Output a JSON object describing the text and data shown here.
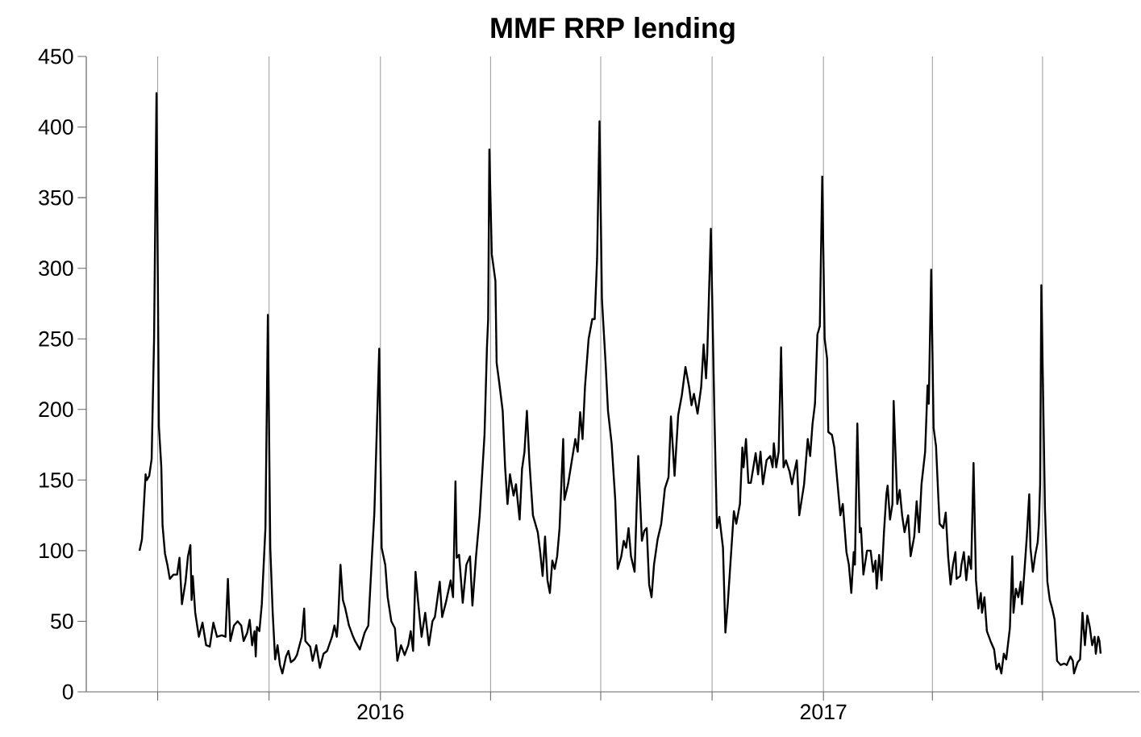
{
  "chart_data": {
    "type": "line",
    "title": "MMF RRP lending",
    "color": "#000000",
    "line_style": "solid",
    "grid": "x",
    "ylim": [
      0,
      450
    ],
    "yticks": [
      0,
      50,
      100,
      150,
      200,
      250,
      300,
      350,
      400,
      450
    ],
    "xlim": [
      "2015-05-03",
      "2017-09-19"
    ],
    "xticks": [
      {
        "value": "2015-07-01",
        "label": null
      },
      {
        "value": "2015-10-01",
        "label": null
      },
      {
        "value": "2016-01-01",
        "label": "2016"
      },
      {
        "value": "2016-04-01",
        "label": null
      },
      {
        "value": "2016-07-01",
        "label": null
      },
      {
        "value": "2016-10-01",
        "label": null
      },
      {
        "value": "2017-01-01",
        "label": "2017"
      },
      {
        "value": "2017-04-01",
        "label": null
      },
      {
        "value": "2017-07-01",
        "label": null
      }
    ],
    "x": [
      "2015-06-16",
      "2015-06-18",
      "2015-06-21",
      "2015-06-22",
      "2015-06-24",
      "2015-06-26",
      "2015-06-28",
      "2015-06-30",
      "2015-07-02",
      "2015-07-04",
      "2015-07-05",
      "2015-07-07",
      "2015-07-09",
      "2015-07-11",
      "2015-07-14",
      "2015-07-17",
      "2015-07-19",
      "2015-07-21",
      "2015-07-24",
      "2015-07-26",
      "2015-07-28",
      "2015-07-29",
      "2015-07-30",
      "2015-08-01",
      "2015-08-04",
      "2015-08-07",
      "2015-08-10",
      "2015-08-13",
      "2015-08-16",
      "2015-08-19",
      "2015-08-23",
      "2015-08-26",
      "2015-08-28",
      "2015-08-30",
      "2015-09-02",
      "2015-09-05",
      "2015-09-08",
      "2015-09-10",
      "2015-09-13",
      "2015-09-15",
      "2015-09-17",
      "2015-09-19",
      "2015-09-20",
      "2015-09-21",
      "2015-09-23",
      "2015-09-25",
      "2015-09-28",
      "2015-09-30",
      "2015-10-02",
      "2015-10-04",
      "2015-10-06",
      "2015-10-08",
      "2015-10-10",
      "2015-10-12",
      "2015-10-15",
      "2015-10-17",
      "2015-10-19",
      "2015-10-22",
      "2015-10-24",
      "2015-10-28",
      "2015-10-30",
      "2015-10-31",
      "2015-11-04",
      "2015-11-06",
      "2015-11-09",
      "2015-11-12",
      "2015-11-15",
      "2015-11-18",
      "2015-11-22",
      "2015-11-24",
      "2015-11-26",
      "2015-11-27",
      "2015-11-29",
      "2015-12-01",
      "2015-12-03",
      "2015-12-06",
      "2015-12-09",
      "2015-12-11",
      "2015-12-15",
      "2015-12-19",
      "2015-12-22",
      "2015-12-25",
      "2015-12-27",
      "2015-12-31",
      "2016-01-02",
      "2016-01-05",
      "2016-01-07",
      "2016-01-10",
      "2016-01-13",
      "2016-01-15",
      "2016-01-18",
      "2016-01-21",
      "2016-01-24",
      "2016-01-26",
      "2016-01-28",
      "2016-01-30",
      "2016-02-01",
      "2016-02-04",
      "2016-02-07",
      "2016-02-10",
      "2016-02-13",
      "2016-02-15",
      "2016-02-19",
      "2016-02-21",
      "2016-02-24",
      "2016-02-28",
      "2016-03-01",
      "2016-03-03",
      "2016-03-04",
      "2016-03-06",
      "2016-03-09",
      "2016-03-12",
      "2016-03-15",
      "2016-03-17",
      "2016-03-20",
      "2016-03-23",
      "2016-03-27",
      "2016-03-29",
      "2016-03-30",
      "2016-03-31",
      "2016-04-02",
      "2016-04-05",
      "2016-04-06",
      "2016-04-08",
      "2016-04-11",
      "2016-04-13",
      "2016-04-15",
      "2016-04-17",
      "2016-04-20",
      "2016-04-22",
      "2016-04-25",
      "2016-04-27",
      "2016-04-29",
      "2016-05-01",
      "2016-05-03",
      "2016-05-06",
      "2016-05-10",
      "2016-05-12",
      "2016-05-14",
      "2016-05-16",
      "2016-05-18",
      "2016-05-20",
      "2016-05-22",
      "2016-05-24",
      "2016-05-26",
      "2016-05-28",
      "2016-05-31",
      "2016-06-01",
      "2016-06-04",
      "2016-06-07",
      "2016-06-10",
      "2016-06-12",
      "2016-06-14",
      "2016-06-16",
      "2016-06-18",
      "2016-06-21",
      "2016-06-24",
      "2016-06-26",
      "2016-06-28",
      "2016-06-30",
      "2016-07-02",
      "2016-07-05",
      "2016-07-07",
      "2016-07-10",
      "2016-07-13",
      "2016-07-15",
      "2016-07-18",
      "2016-07-20",
      "2016-07-22",
      "2016-07-24",
      "2016-07-26",
      "2016-07-29",
      "2016-08-01",
      "2016-08-04",
      "2016-08-06",
      "2016-08-08",
      "2016-08-10",
      "2016-08-12",
      "2016-08-14",
      "2016-08-17",
      "2016-08-20",
      "2016-08-23",
      "2016-08-26",
      "2016-08-28",
      "2016-08-31",
      "2016-09-03",
      "2016-09-06",
      "2016-09-09",
      "2016-09-12",
      "2016-09-14",
      "2016-09-16",
      "2016-09-19",
      "2016-09-22",
      "2016-09-24",
      "2016-09-26",
      "2016-09-27",
      "2016-09-30",
      "2016-10-03",
      "2016-10-05",
      "2016-10-07",
      "2016-10-10",
      "2016-10-12",
      "2016-10-14",
      "2016-10-17",
      "2016-10-19",
      "2016-10-21",
      "2016-10-24",
      "2016-10-26",
      "2016-10-27",
      "2016-10-29",
      "2016-10-31",
      "2016-11-02",
      "2016-11-06",
      "2016-11-08",
      "2016-11-10",
      "2016-11-12",
      "2016-11-15",
      "2016-11-18",
      "2016-11-20",
      "2016-11-21",
      "2016-11-23",
      "2016-11-25",
      "2016-11-27",
      "2016-11-29",
      "2016-12-01",
      "2016-12-04",
      "2016-12-06",
      "2016-12-08",
      "2016-12-10",
      "2016-12-12",
      "2016-12-16",
      "2016-12-19",
      "2016-12-21",
      "2016-12-23",
      "2016-12-25",
      "2016-12-27",
      "2016-12-29",
      "2016-12-31",
      "2017-01-02",
      "2017-01-04",
      "2017-01-05",
      "2017-01-08",
      "2017-01-10",
      "2017-01-13",
      "2017-01-15",
      "2017-01-17",
      "2017-01-20",
      "2017-01-22",
      "2017-01-24",
      "2017-01-26",
      "2017-01-27",
      "2017-01-29",
      "2017-01-31",
      "2017-02-01",
      "2017-02-03",
      "2017-02-06",
      "2017-02-09",
      "2017-02-11",
      "2017-02-13",
      "2017-02-14",
      "2017-02-16",
      "2017-02-18",
      "2017-02-20",
      "2017-02-22",
      "2017-02-23",
      "2017-02-25",
      "2017-02-27",
      "2017-02-28",
      "2017-03-03",
      "2017-03-05",
      "2017-03-07",
      "2017-03-09",
      "2017-03-12",
      "2017-03-14",
      "2017-03-17",
      "2017-03-19",
      "2017-03-21",
      "2017-03-23",
      "2017-03-26",
      "2017-03-28",
      "2017-03-29",
      "2017-03-31",
      "2017-04-02",
      "2017-04-04",
      "2017-04-06",
      "2017-04-07",
      "2017-04-10",
      "2017-04-12",
      "2017-04-14",
      "2017-04-16",
      "2017-04-18",
      "2017-04-20",
      "2017-04-21",
      "2017-04-24",
      "2017-04-25",
      "2017-04-27",
      "2017-04-29",
      "2017-05-01",
      "2017-05-03",
      "2017-05-05",
      "2017-05-07",
      "2017-05-09",
      "2017-05-11",
      "2017-05-12",
      "2017-05-14",
      "2017-05-16",
      "2017-05-19",
      "2017-05-22",
      "2017-05-24",
      "2017-05-26",
      "2017-05-28",
      "2017-05-30",
      "2017-06-01",
      "2017-06-04",
      "2017-06-06",
      "2017-06-07",
      "2017-06-09",
      "2017-06-11",
      "2017-06-13",
      "2017-06-14",
      "2017-06-16",
      "2017-06-18",
      "2017-06-20",
      "2017-06-21",
      "2017-06-23",
      "2017-06-25",
      "2017-06-27",
      "2017-06-28",
      "2017-06-29",
      "2017-06-30",
      "2017-07-03",
      "2017-07-05",
      "2017-07-07",
      "2017-07-09",
      "2017-07-11",
      "2017-07-13",
      "2017-07-16",
      "2017-07-19",
      "2017-07-21",
      "2017-07-24",
      "2017-07-26",
      "2017-07-27",
      "2017-07-30",
      "2017-08-01",
      "2017-08-03",
      "2017-08-05",
      "2017-08-07",
      "2017-08-09",
      "2017-08-11",
      "2017-08-13",
      "2017-08-14",
      "2017-08-16",
      "2017-08-17",
      "2017-08-18"
    ],
    "values": [
      100,
      108,
      154,
      150,
      153,
      165,
      250,
      424,
      188,
      159,
      118,
      98,
      90,
      80,
      83,
      83,
      95,
      62,
      78,
      96,
      104,
      65,
      82,
      56,
      39,
      49,
      33,
      32,
      49,
      39,
      40,
      39,
      80,
      36,
      47,
      50,
      47,
      36,
      42,
      51,
      33,
      43,
      25,
      46,
      43,
      62,
      116,
      267,
      102,
      56,
      23,
      33,
      19,
      13,
      25,
      29,
      21,
      23,
      26,
      39,
      59,
      36,
      32,
      22,
      33,
      17,
      27,
      29,
      39,
      47,
      39,
      50,
      90,
      65,
      59,
      47,
      40,
      36,
      30,
      42,
      47,
      96,
      127,
      243,
      102,
      90,
      67,
      50,
      45,
      22,
      33,
      26,
      33,
      43,
      29,
      85,
      65,
      39,
      56,
      33,
      50,
      53,
      78,
      53,
      63,
      79,
      67,
      149,
      95,
      97,
      63,
      90,
      96,
      61,
      96,
      125,
      182,
      244,
      264,
      384,
      310,
      291,
      233,
      220,
      199,
      159,
      133,
      154,
      139,
      147,
      122,
      158,
      170,
      199,
      164,
      125,
      113,
      99,
      82,
      110,
      79,
      70,
      93,
      87,
      96,
      116,
      179,
      136,
      147,
      163,
      179,
      170,
      198,
      179,
      216,
      250,
      264,
      264,
      307,
      404,
      278,
      233,
      199,
      176,
      136,
      87,
      96,
      107,
      102,
      116,
      96,
      85,
      167,
      107,
      114,
      116,
      76,
      67,
      90,
      108,
      119,
      144,
      152,
      195,
      153,
      196,
      210,
      230,
      216,
      203,
      211,
      197,
      216,
      246,
      222,
      239,
      328,
      193,
      116,
      124,
      102,
      42,
      63,
      102,
      128,
      119,
      133,
      173,
      159,
      179,
      148,
      148,
      169,
      154,
      170,
      147,
      164,
      167,
      159,
      176,
      159,
      170,
      244,
      159,
      164,
      156,
      147,
      156,
      164,
      125,
      147,
      179,
      167,
      190,
      204,
      253,
      259,
      365,
      250,
      236,
      184,
      182,
      173,
      144,
      125,
      133,
      99,
      90,
      70,
      99,
      90,
      190,
      113,
      116,
      83,
      100,
      100,
      85,
      93,
      73,
      97,
      79,
      113,
      140,
      146,
      122,
      133,
      206,
      133,
      143,
      125,
      113,
      125,
      96,
      110,
      135,
      113,
      147,
      170,
      217,
      204,
      299,
      187,
      174,
      136,
      119,
      116,
      127,
      96,
      76,
      90,
      99,
      80,
      82,
      90,
      99,
      79,
      96,
      87,
      162,
      79,
      59,
      70,
      56,
      67,
      43,
      36,
      30,
      16,
      20,
      13,
      27,
      23,
      45,
      96,
      56,
      73,
      67,
      78,
      62,
      85,
      110,
      140,
      102,
      85,
      97,
      106,
      119,
      147,
      288,
      130,
      78,
      65,
      59,
      51,
      22,
      19,
      20,
      19,
      25,
      22,
      13,
      21,
      23,
      56,
      33,
      54,
      46,
      33,
      39,
      27,
      39,
      36,
      27
    ]
  }
}
